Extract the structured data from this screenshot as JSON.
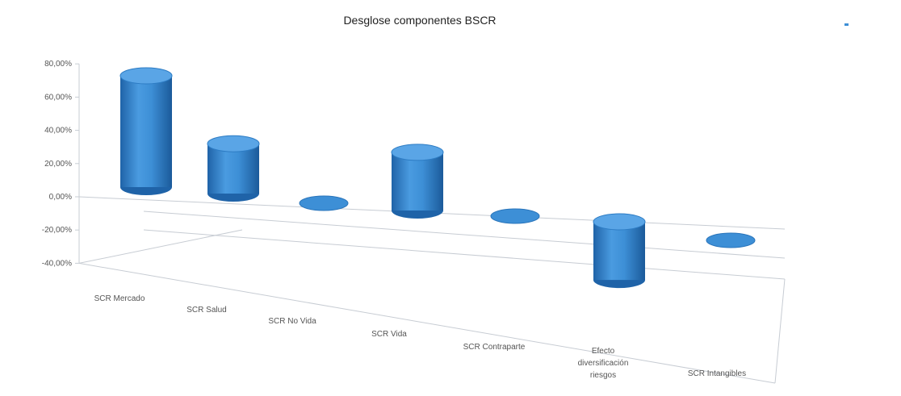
{
  "chart_data": {
    "type": "bar",
    "title": "Desglose componentes BSCR",
    "categories": [
      "SCR Mercado",
      "SCR Salud",
      "SCR No Vida",
      "SCR Vida",
      "SCR Contraparte",
      "Efecto diversificación riesgos",
      "SCR Intangibles"
    ],
    "series": [
      {
        "values": [
          67,
          30,
          0,
          35,
          0,
          -35,
          0
        ]
      }
    ],
    "yticks": [
      "80,00%",
      "60,00%",
      "40,00%",
      "20,00%",
      "0,00%",
      "-20,00%",
      "-40,00%"
    ],
    "ylim": [
      -40,
      80
    ],
    "xlabel": "",
    "ylabel": "",
    "legend_position": "top-right",
    "grid": false
  },
  "colors": {
    "bar_main": "#3d8fd6",
    "bar_dark": "#1f63a8",
    "bar_top": "#5aa5e6",
    "axis": "#c7ccd3"
  }
}
